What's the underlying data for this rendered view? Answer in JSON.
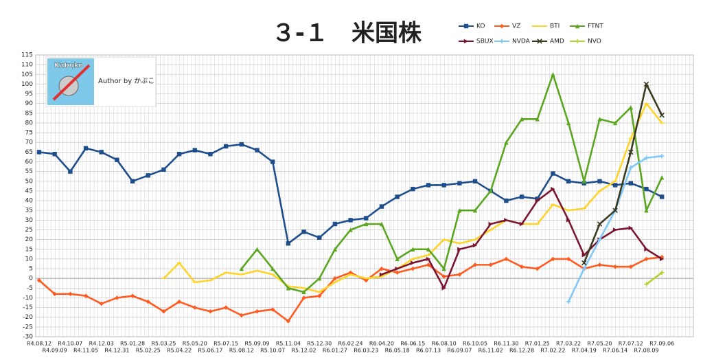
{
  "chart_data": {
    "type": "line",
    "title": "３-１　米国株",
    "author_label": "Author by かぶこ",
    "logo_text": "Kabuko",
    "categories": [
      "R4.08.12",
      "R4.09.09",
      "R4.10.07",
      "R4.11.05",
      "R4.12.03",
      "R4.12.31",
      "R5.01.28",
      "R5.02.25",
      "R5.03.25",
      "R5.04.22",
      "R5.05.20",
      "R5.06.17",
      "R5.07.15",
      "R5.08.12",
      "R5.09.09",
      "R5.10.07",
      "R5.11.04",
      "R5.12.02",
      "R5.12.30",
      "R6.01.27",
      "R6.02.24",
      "R6.03.23",
      "R6.04.20",
      "R6.05.18",
      "R6.06.15",
      "R6.07.13",
      "R6.08.10",
      "R6.09.07",
      "R6.10.05",
      "R6.11.02",
      "R6.11.30",
      "R6.12.28",
      "R7.01.25",
      "R7.02.22",
      "R7.03.22",
      "R7.04.19",
      "R7.05.20",
      "R7.06.14",
      "R7.07.12",
      "R7.08.09",
      "R7.09.06"
    ],
    "series": [
      {
        "name": "KO",
        "color": "#1f4e8c",
        "marker": "square",
        "values": [
          65,
          64,
          55,
          67,
          65,
          61,
          50,
          53,
          56,
          64,
          66,
          64,
          68,
          69,
          66,
          60,
          18,
          24,
          21,
          28,
          30,
          31,
          37,
          42,
          46,
          48,
          48,
          49,
          50,
          45,
          40,
          42,
          41,
          54,
          50,
          49,
          50,
          48,
          49,
          46,
          42
        ]
      },
      {
        "name": "VZ",
        "color": "#ff5a1f",
        "marker": "diamond",
        "values": [
          -1,
          -8,
          -8,
          -9,
          -13,
          -10,
          -9,
          -12,
          -17,
          -12,
          -15,
          -17,
          -15,
          -19,
          -17,
          -16,
          -22,
          -10,
          -9,
          0,
          3,
          -1,
          5,
          3,
          5,
          7,
          1,
          2,
          7,
          7,
          10,
          6,
          5,
          10,
          10,
          5,
          7,
          6,
          6,
          10,
          11
        ]
      },
      {
        "name": "BTI",
        "color": "#ffd42a",
        "marker": "dash",
        "values": [
          null,
          null,
          null,
          null,
          null,
          null,
          null,
          null,
          0,
          8,
          -2,
          -1,
          3,
          2,
          4,
          2,
          -4,
          -5,
          -7,
          -2,
          2,
          0,
          1,
          5,
          10,
          12,
          20,
          18,
          20,
          25,
          30,
          28,
          28,
          38,
          35,
          36,
          45,
          50,
          72,
          90,
          80
        ]
      },
      {
        "name": "FTNT",
        "color": "#5aa61e",
        "marker": "triangle",
        "values": [
          null,
          null,
          null,
          null,
          null,
          null,
          null,
          null,
          null,
          null,
          null,
          null,
          null,
          5,
          15,
          5,
          -5,
          -7,
          0,
          15,
          25,
          28,
          28,
          10,
          15,
          15,
          5,
          35,
          35,
          45,
          70,
          82,
          82,
          105,
          80,
          50,
          82,
          80,
          88,
          35,
          52
        ]
      },
      {
        "name": "SBUX",
        "color": "#7b1530",
        "marker": "arrow",
        "values": [
          null,
          null,
          null,
          null,
          null,
          null,
          null,
          null,
          null,
          null,
          null,
          null,
          null,
          null,
          null,
          null,
          null,
          null,
          null,
          null,
          null,
          null,
          2,
          5,
          8,
          10,
          -5,
          15,
          17,
          28,
          30,
          28,
          40,
          46,
          30,
          12,
          20,
          25,
          26,
          15,
          10
        ]
      },
      {
        "name": "NVDA",
        "color": "#7fc8f8",
        "marker": "plus",
        "values": [
          null,
          null,
          null,
          null,
          null,
          null,
          null,
          null,
          null,
          null,
          null,
          null,
          null,
          null,
          null,
          null,
          null,
          null,
          null,
          null,
          null,
          null,
          null,
          null,
          null,
          null,
          null,
          null,
          null,
          null,
          null,
          null,
          null,
          null,
          -12,
          5,
          20,
          35,
          57,
          62,
          63
        ]
      },
      {
        "name": "AMD",
        "color": "#3a3a1f",
        "marker": "cross",
        "values": [
          null,
          null,
          null,
          null,
          null,
          null,
          null,
          null,
          null,
          null,
          null,
          null,
          null,
          null,
          null,
          null,
          null,
          null,
          null,
          null,
          null,
          null,
          null,
          null,
          null,
          null,
          null,
          null,
          null,
          null,
          null,
          null,
          null,
          null,
          null,
          8,
          28,
          35,
          65,
          100,
          84
        ]
      },
      {
        "name": "NVO",
        "color": "#b5d334",
        "marker": "plus",
        "values": [
          null,
          null,
          null,
          null,
          null,
          null,
          null,
          null,
          null,
          null,
          null,
          null,
          null,
          null,
          null,
          null,
          null,
          null,
          null,
          null,
          null,
          null,
          null,
          null,
          null,
          null,
          null,
          null,
          null,
          null,
          null,
          null,
          null,
          null,
          null,
          null,
          null,
          null,
          null,
          -3,
          3
        ]
      }
    ],
    "ylim": [
      -30,
      115
    ],
    "yticks": [
      -30,
      -25,
      -20,
      -15,
      -10,
      -5,
      0,
      5,
      10,
      15,
      20,
      25,
      30,
      35,
      40,
      45,
      50,
      55,
      60,
      65,
      70,
      75,
      80,
      85,
      90,
      95,
      100,
      105,
      110,
      115
    ],
    "grid": true
  }
}
